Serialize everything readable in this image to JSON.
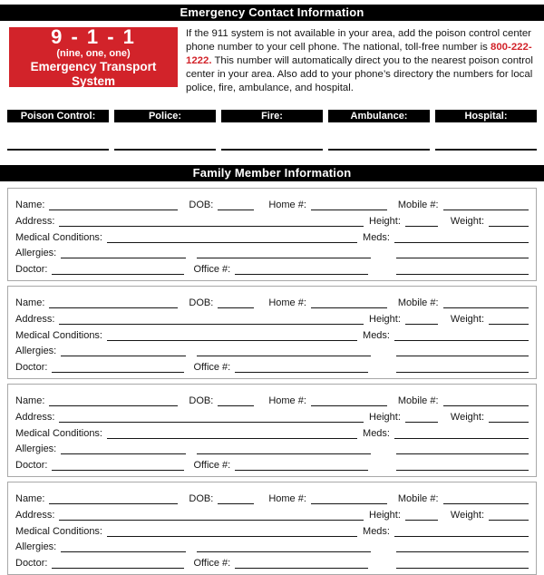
{
  "header": {
    "title": "Emergency Contact Information"
  },
  "emergency": {
    "badge": {
      "number": "9 - 1 - 1",
      "sub": "(nine, one, one)",
      "caption": "Emergency Transport System",
      "bg_color": "#d2232a"
    },
    "paragraph": {
      "before": "If the 911 system is not available in your area, add the poison control center phone number to your cell phone. The national, toll-free number is ",
      "phone": "800-222-1222.",
      "after": " This number will automatically direct you to the nearest poison control center in your area. Also add to your phone’s directory the numbers for local police, fire, ambulance, and hospital.",
      "phone_color": "#d2232a"
    }
  },
  "contacts": {
    "labels": [
      "Poison Control:",
      "Police:",
      "Fire:",
      "Ambulance:",
      "Hospital:"
    ]
  },
  "family": {
    "title": "Family Member Information",
    "member_count": 4,
    "fields": {
      "name": "Name:",
      "dob": "DOB:",
      "home": "Home #:",
      "mobile": "Mobile #:",
      "address": "Address:",
      "height": "Height:",
      "weight": "Weight:",
      "medical": "Medical Conditions:",
      "meds": "Meds:",
      "allergies": "Allergies:",
      "doctor": "Doctor:",
      "office": "Office #:"
    }
  }
}
